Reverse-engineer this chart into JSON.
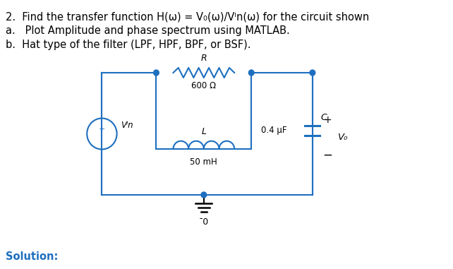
{
  "title_line1": "2.  Find the transfer function H(ω) = V₀(ω)/Vᴵn(ω) for the circuit shown",
  "title_line2": "a.   Plot Amplitude and phase spectrum using MATLAB.",
  "title_line3": "b.  Hat type of the filter (LPF, HPF, BPF, or BSF).",
  "solution_label": "Solution:",
  "R_label": "R",
  "R_value": "600 Ω",
  "L_label": "L",
  "L_value": "50 mH",
  "C_label": "C",
  "C_value": "0.4 μF",
  "Vin_label": "Vᴵn",
  "Vo_label": "V₀",
  "ground_label": "¯0",
  "plus_label": "+",
  "minus_label": "−",
  "text_color": "#000000",
  "blue_color": "#1E6FBF",
  "circuit_color": "#1E6FBF",
  "bg_color": "#ffffff"
}
